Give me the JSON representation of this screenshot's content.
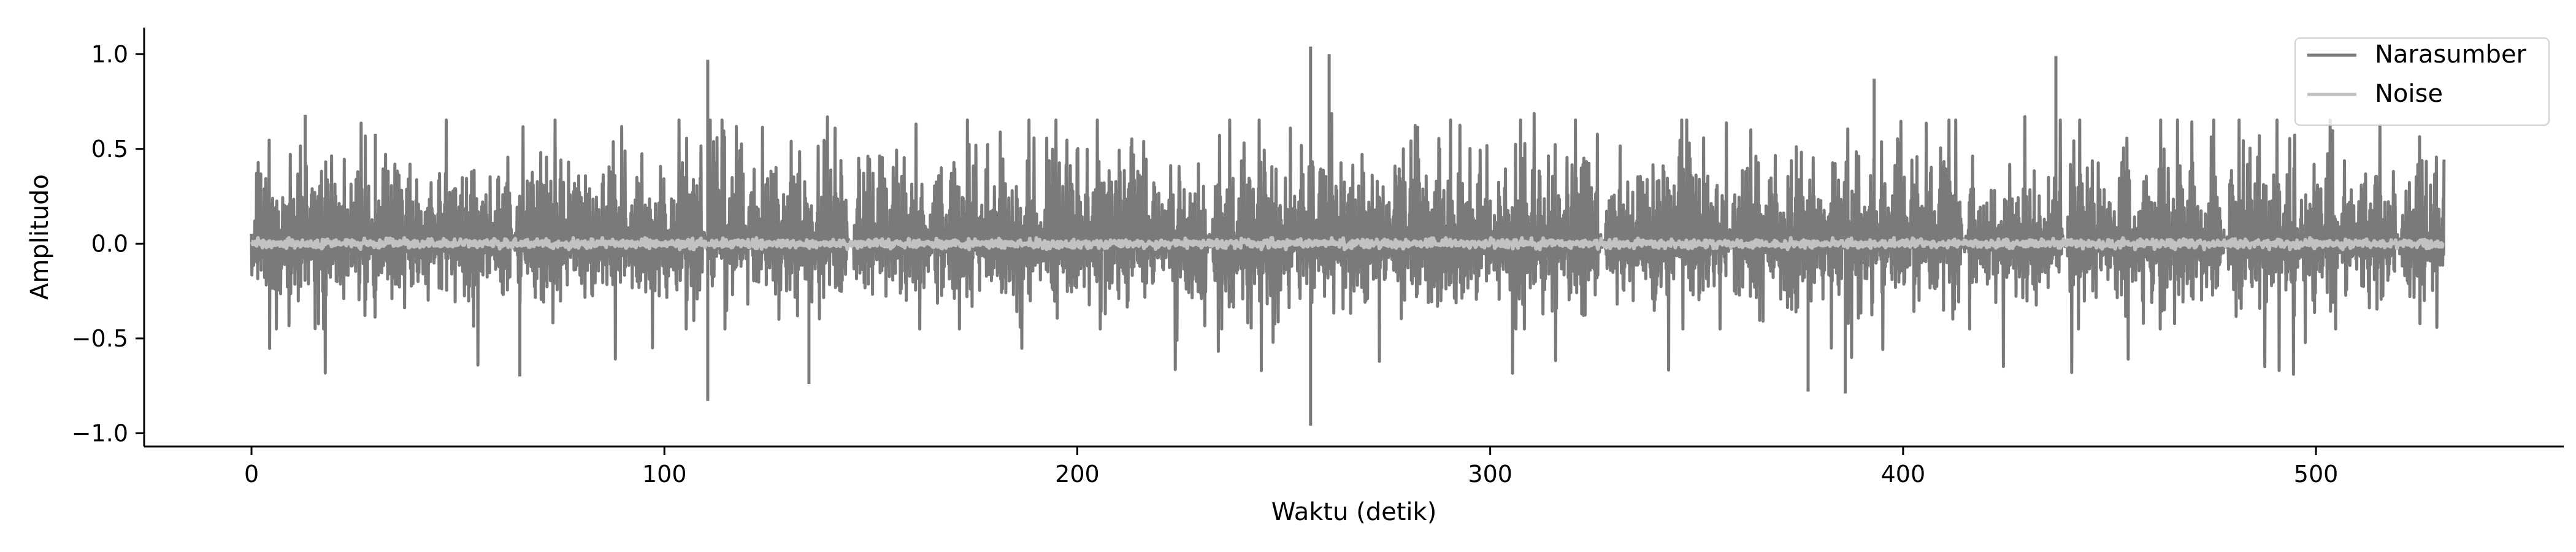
{
  "chart_data": {
    "type": "line",
    "title": "",
    "xlabel": "Waktu (detik)",
    "ylabel": "Amplitudo",
    "xlim": [
      -26,
      560
    ],
    "ylim": [
      -1.07,
      1.14
    ],
    "xticks": [
      0,
      100,
      200,
      300,
      400,
      500
    ],
    "yticks": [
      -1.0,
      -0.5,
      0.0,
      0.5,
      1.0
    ],
    "xtick_labels": [
      "0",
      "100",
      "200",
      "300",
      "400",
      "500"
    ],
    "ytick_labels": [
      "−1.0",
      "−0.5",
      "0.0",
      "0.5",
      "1.0"
    ],
    "grid": false,
    "legend_position": "top-right",
    "series": [
      {
        "name": "Narasumber",
        "color": "#7a7a7a",
        "x_range": [
          0,
          531
        ],
        "typical_envelope": [
          -0.3,
          0.45
        ],
        "peaks": [
          {
            "x": 110.5,
            "y": 0.97
          },
          {
            "x": 110.5,
            "y": -0.83
          },
          {
            "x": 256.5,
            "y": 1.04
          },
          {
            "x": 256.5,
            "y": -0.96
          },
          {
            "x": 261,
            "y": 1.0
          },
          {
            "x": 437,
            "y": 0.99
          },
          {
            "x": 377,
            "y": -0.78
          },
          {
            "x": 386,
            "y": -0.79
          },
          {
            "x": 135,
            "y": -0.74
          },
          {
            "x": 65,
            "y": -0.7
          },
          {
            "x": 30,
            "y": 0.58
          },
          {
            "x": 13,
            "y": 0.68
          },
          {
            "x": 393,
            "y": 0.87
          }
        ]
      },
      {
        "name": "Noise",
        "color": "#c2c2c2",
        "x_range": [
          0,
          531
        ],
        "typical_envelope": [
          -0.03,
          0.03
        ]
      }
    ]
  }
}
